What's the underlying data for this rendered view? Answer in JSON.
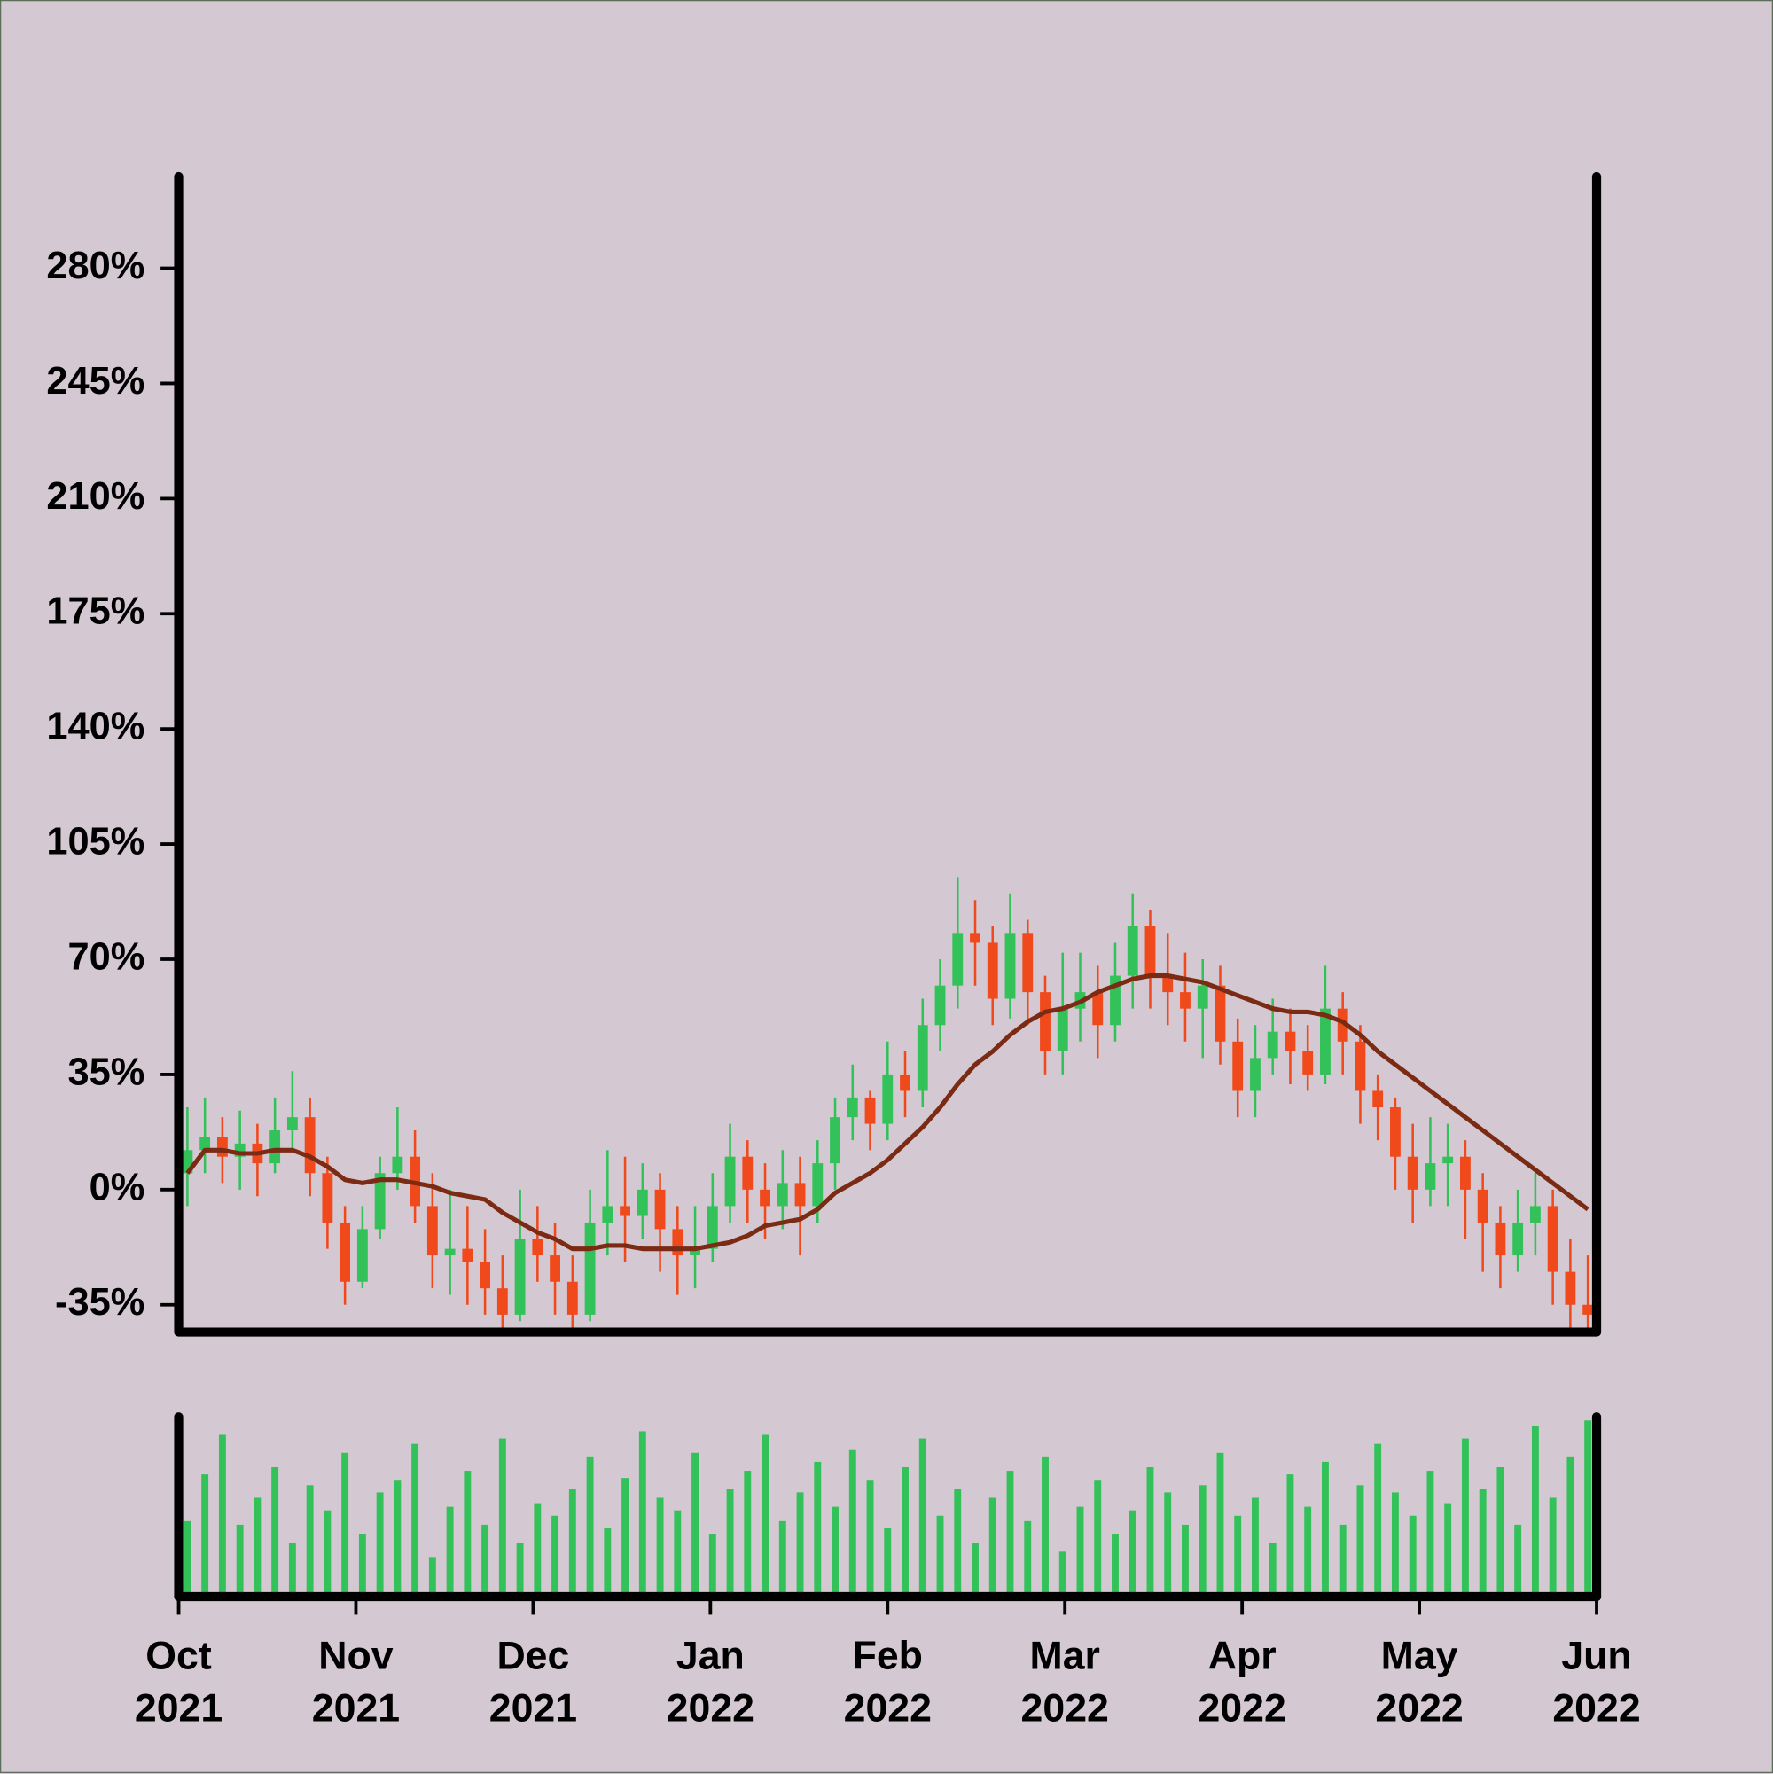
{
  "chart_data": {
    "type": "candlestick",
    "xlim": [
      "2021-10",
      "2022-06"
    ],
    "xticks": [
      {
        "value": "2021-10",
        "label": "Oct 2021"
      },
      {
        "value": "2021-11",
        "label": "Nov 2021"
      },
      {
        "value": "2021-12",
        "label": "Dec 2021"
      },
      {
        "value": "2022-01",
        "label": "Jan 2022"
      },
      {
        "value": "2022-02",
        "label": "Feb 2022"
      },
      {
        "value": "2022-03",
        "label": "Mar 2022"
      },
      {
        "value": "2022-04",
        "label": "Apr 2022"
      },
      {
        "value": "2022-05",
        "label": "May 2022"
      },
      {
        "value": "2022-06",
        "label": "Jun 2022"
      }
    ],
    "ylim": [
      -43.3,
      307.9
    ],
    "yticks": [
      {
        "value": -35,
        "label": "-35%"
      },
      {
        "value": 0,
        "label": "0%"
      },
      {
        "value": 35,
        "label": "35%"
      },
      {
        "value": 70,
        "label": "70%"
      },
      {
        "value": 105,
        "label": "105%"
      },
      {
        "value": 140,
        "label": "140%"
      },
      {
        "value": 175,
        "label": "175%"
      },
      {
        "value": 210,
        "label": "210%"
      },
      {
        "value": 245,
        "label": "245%"
      },
      {
        "value": 280,
        "label": "280%"
      }
    ],
    "grid": false,
    "up_color": "#33c15a",
    "down_color": "#f04a1c",
    "open": [
      5,
      12,
      16,
      10,
      14,
      8,
      18,
      22,
      5,
      -10,
      -28,
      -12,
      5,
      10,
      -5,
      -20,
      -18,
      -22,
      -30,
      -38,
      -15,
      -20,
      -28,
      -38,
      -10,
      -5,
      -8,
      0,
      -12,
      -20,
      -18,
      -5,
      10,
      0,
      -5,
      2,
      -5,
      8,
      22,
      28,
      20,
      35,
      30,
      50,
      62,
      78,
      75,
      58,
      78,
      60,
      42,
      55,
      60,
      50,
      65,
      80,
      65,
      60,
      55,
      62,
      45,
      30,
      40,
      48,
      42,
      35,
      55,
      45,
      30,
      25,
      10,
      0,
      8,
      10,
      0,
      -10,
      -20,
      -10,
      -5,
      -25,
      -35
    ],
    "high": [
      25,
      28,
      22,
      24,
      20,
      28,
      36,
      28,
      10,
      -5,
      -5,
      10,
      25,
      18,
      5,
      0,
      -5,
      -12,
      -20,
      0,
      -5,
      -10,
      -20,
      0,
      12,
      10,
      8,
      5,
      -5,
      -5,
      5,
      20,
      15,
      8,
      12,
      10,
      15,
      28,
      38,
      30,
      45,
      42,
      58,
      70,
      95,
      88,
      80,
      90,
      82,
      65,
      72,
      72,
      68,
      75,
      90,
      85,
      78,
      72,
      70,
      68,
      52,
      50,
      58,
      55,
      50,
      68,
      60,
      50,
      35,
      28,
      20,
      22,
      20,
      15,
      5,
      -5,
      0,
      5,
      0,
      -15,
      -20
    ],
    "low": [
      -5,
      5,
      2,
      0,
      -2,
      5,
      12,
      -2,
      -18,
      -35,
      -30,
      -15,
      0,
      -10,
      -30,
      -32,
      -35,
      -38,
      -42,
      -40,
      -28,
      -38,
      -42,
      -40,
      -20,
      -22,
      -15,
      -25,
      -32,
      -30,
      -22,
      -10,
      -10,
      -15,
      -12,
      -20,
      -10,
      0,
      15,
      12,
      15,
      22,
      25,
      42,
      55,
      62,
      50,
      52,
      50,
      35,
      35,
      45,
      40,
      45,
      55,
      55,
      50,
      45,
      40,
      38,
      22,
      22,
      35,
      32,
      30,
      32,
      35,
      20,
      15,
      0,
      -10,
      -5,
      -5,
      -15,
      -25,
      -30,
      -25,
      -20,
      -35,
      -42,
      -42
    ],
    "close": [
      12,
      16,
      10,
      14,
      8,
      18,
      22,
      5,
      -10,
      -28,
      -12,
      5,
      10,
      -5,
      -20,
      -18,
      -22,
      -30,
      -38,
      -15,
      -20,
      -28,
      -38,
      -10,
      -5,
      -8,
      0,
      -12,
      -20,
      -18,
      -5,
      10,
      0,
      -5,
      2,
      -5,
      8,
      22,
      28,
      20,
      35,
      30,
      50,
      62,
      78,
      75,
      58,
      78,
      60,
      42,
      55,
      60,
      50,
      65,
      80,
      65,
      60,
      55,
      62,
      45,
      30,
      40,
      48,
      42,
      35,
      55,
      45,
      30,
      25,
      10,
      0,
      8,
      10,
      0,
      -10,
      -20,
      -10,
      -5,
      -25,
      -35,
      -38
    ],
    "ma": {
      "color": "#7b2a14",
      "values": [
        5,
        12,
        12,
        11,
        11,
        12,
        12,
        10,
        7,
        3,
        2,
        3,
        3,
        2,
        1,
        -1,
        -2,
        -3,
        -7,
        -10,
        -13,
        -15,
        -18,
        -18,
        -17,
        -17,
        -18,
        -18,
        -18,
        -18,
        -17,
        -16,
        -14,
        -11,
        -10,
        -9,
        -6,
        -1,
        2,
        5,
        9,
        14,
        19,
        25,
        32,
        38,
        42,
        47,
        51,
        54,
        55,
        57,
        60,
        62,
        64,
        65,
        65,
        64,
        63,
        61,
        59,
        57,
        55,
        54,
        54,
        53,
        51,
        47,
        42,
        38,
        34,
        30,
        26,
        22,
        18,
        14,
        10,
        6,
        2,
        -2,
        -6
      ]
    },
    "volume": {
      "color": "#33c15a",
      "ylim": [
        0,
        100
      ],
      "values": [
        42,
        68,
        90,
        40,
        55,
        72,
        30,
        62,
        48,
        80,
        35,
        58,
        65,
        85,
        22,
        50,
        70,
        40,
        88,
        30,
        52,
        45,
        60,
        78,
        38,
        66,
        92,
        55,
        48,
        80,
        35,
        60,
        70,
        90,
        42,
        58,
        75,
        50,
        82,
        65,
        38,
        72,
        88,
        45,
        60,
        30,
        55,
        70,
        42,
        78,
        25,
        50,
        65,
        35,
        48,
        72,
        58,
        40,
        62,
        80,
        45,
        55,
        30,
        68,
        50,
        75,
        40,
        62,
        85,
        58,
        45,
        70,
        52,
        88,
        60,
        72,
        40,
        95,
        55,
        78,
        98
      ]
    }
  }
}
